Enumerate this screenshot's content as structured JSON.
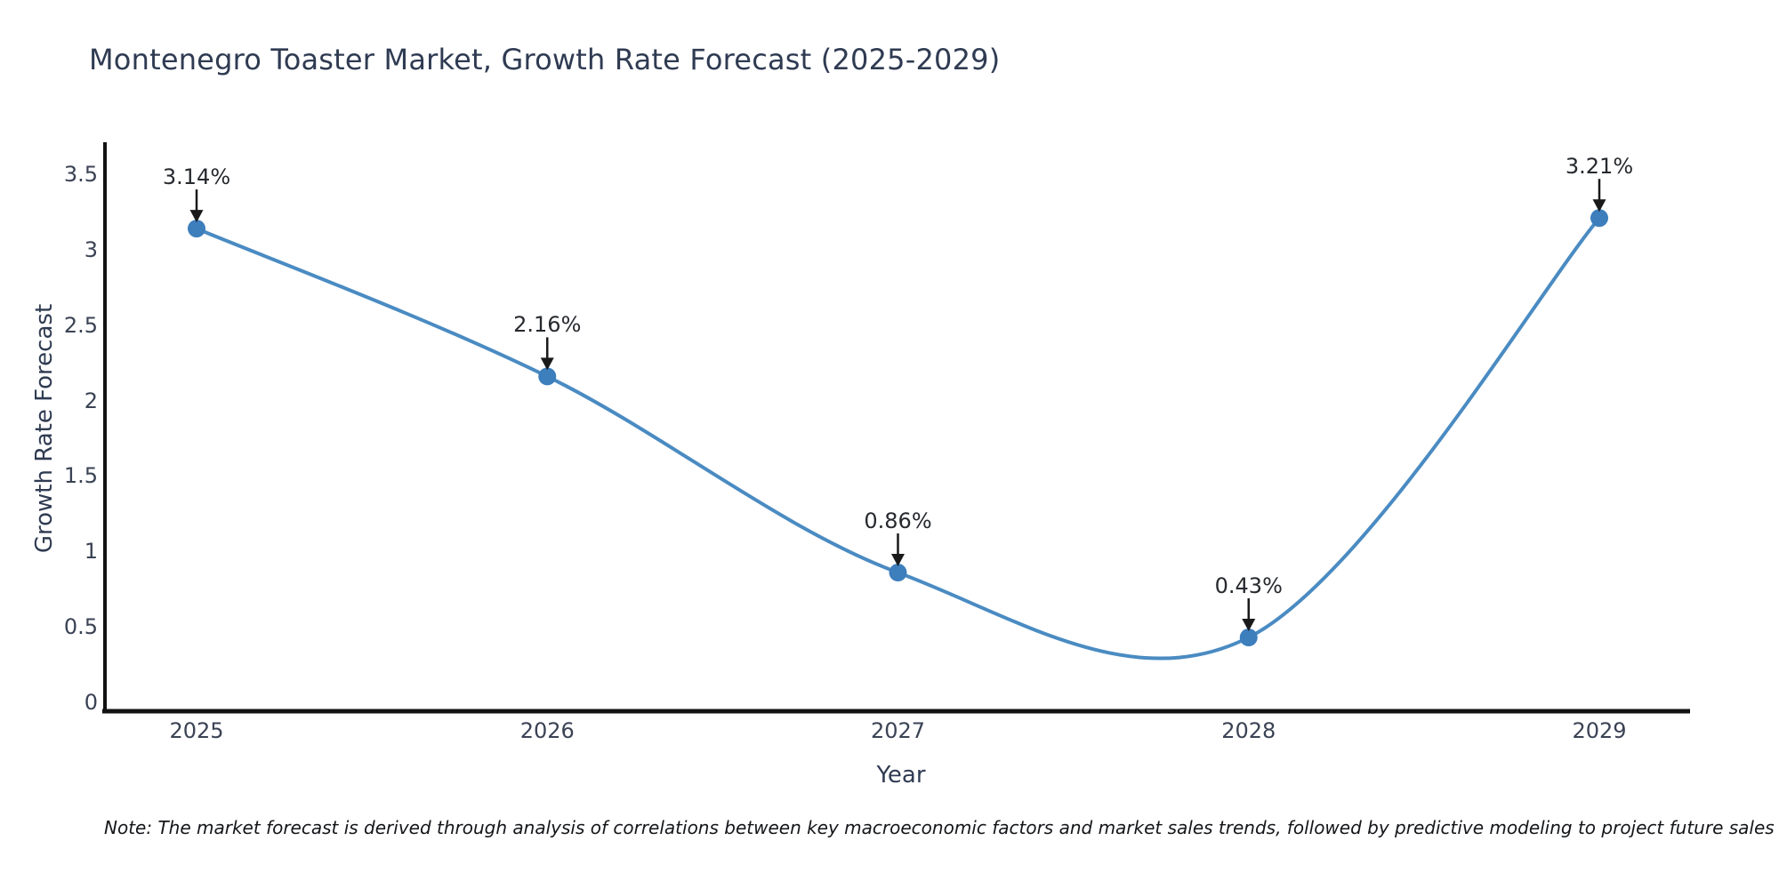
{
  "title": "Montenegro Toaster Market, Growth Rate Forecast (2025-2029)",
  "note": "Note: The market forecast is derived through analysis of correlations between key macroeconomic factors and market sales trends, followed by predictive modeling to project future sales",
  "chart_data": {
    "type": "line",
    "line_shape": "spline",
    "title": "Montenegro Toaster Market, Growth Rate Forecast (2025-2029)",
    "x": [
      2025,
      2026,
      2027,
      2028,
      2029
    ],
    "values": [
      3.14,
      2.16,
      0.86,
      0.43,
      3.21
    ],
    "point_labels": [
      "3.14%",
      "2.16%",
      "0.86%",
      "0.43%",
      "3.21%"
    ],
    "xlabel": "Year",
    "ylabel": "Growth Rate Forecast",
    "x_tick_labels": [
      "2025",
      "2026",
      "2027",
      "2028",
      "2029"
    ],
    "y_tick_values": [
      0,
      0.5,
      1,
      1.5,
      2,
      2.5,
      3,
      3.5
    ],
    "y_tick_labels": [
      "0",
      "0.5",
      "1",
      "1.5",
      "2",
      "2.5",
      "3",
      "3.5"
    ],
    "ylim": [
      0,
      3.5
    ],
    "grid": false,
    "legend": "none",
    "annotation_arrows": true,
    "colors": {
      "line": "#4a8bc2",
      "marker": "#3d7ebd",
      "axis": "#121212",
      "arrow": "#1a1a1a",
      "title_text": "#2f3b52",
      "tick_text": "#3a4254",
      "annotation_text": "#26292e",
      "note_text": "#14161a"
    }
  }
}
